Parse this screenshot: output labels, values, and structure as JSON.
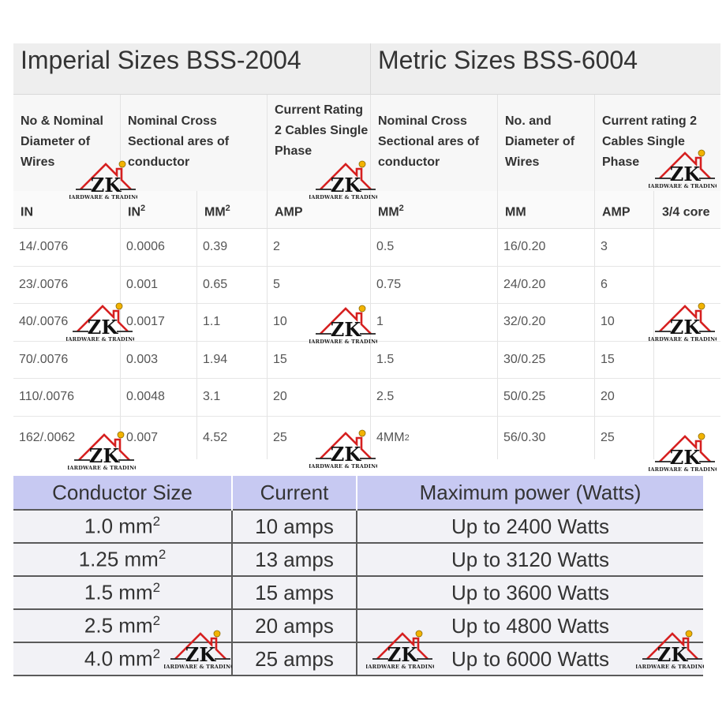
{
  "top": {
    "imperial_title": "Imperial Sizes BSS-2004",
    "metric_title": "Metric Sizes BSS-6004",
    "headers": [
      "No & Nominal Diameter of Wires",
      "Nominal Cross Sectional ares of conductor",
      "",
      "Current Rating 2 Cables Single Phase",
      "Nominal Cross Sectional ares of conductor",
      "No. and Diameter of Wires",
      "Current rating 2 Cables Single Phase",
      ""
    ],
    "units": [
      {
        "base": "IN",
        "sup": ""
      },
      {
        "base": "IN",
        "sup": "2"
      },
      {
        "base": "MM",
        "sup": "2"
      },
      {
        "base": "AMP",
        "sup": ""
      },
      {
        "base": "MM",
        "sup": "2"
      },
      {
        "base": "MM",
        "sup": ""
      },
      {
        "base": "AMP",
        "sup": ""
      },
      {
        "base": "3/4 core",
        "sup": ""
      }
    ],
    "rows": [
      [
        "14/.0076",
        "0.0006",
        "0.39",
        "2",
        "0.5",
        "16/0.20",
        "3",
        ""
      ],
      [
        "23/.0076",
        "0.001",
        "0.65",
        "5",
        "0.75",
        "24/0.20",
        "6",
        ""
      ],
      [
        "40/.0076",
        "0.0017",
        "1.1",
        "10",
        "1",
        "32/0.20",
        "10",
        ""
      ],
      [
        "70/.0076",
        "0.003",
        "1.94",
        "15",
        "1.5",
        "30/0.25",
        "15",
        ""
      ],
      [
        "110/.0076",
        "0.0048",
        "3.1",
        "20",
        "2.5",
        "50/0.25",
        "20",
        ""
      ],
      [
        "162/.0062",
        "0.007",
        "4.52",
        "25",
        "4MM",
        "56/0.30",
        "25",
        ""
      ]
    ],
    "row6_sup": "2"
  },
  "bottom": {
    "headers": [
      "Conductor Size",
      "Current",
      "Maximum power (Watts)"
    ],
    "rows": [
      {
        "size": "1.0 mm",
        "sup": "2",
        "current": "10 amps",
        "power": "Up to 2400 Watts"
      },
      {
        "size": "1.25 mm",
        "sup": "2",
        "current": "13 amps",
        "power": "Up to 3120 Watts"
      },
      {
        "size": "1.5 mm",
        "sup": "2",
        "current": "15 amps",
        "power": "Up to 3600 Watts"
      },
      {
        "size": "2.5 mm",
        "sup": "2",
        "current": "20 amps",
        "power": "Up to 4800 Watts"
      },
      {
        "size": "4.0 mm",
        "sup": "2",
        "current": "25 amps",
        "power": "Up to 6000 Watts"
      }
    ]
  },
  "watermark": {
    "monogram": "ZK",
    "caption": "HARDWARE & TRADING",
    "house_color": "#d62020",
    "dot_color": "#f2b300"
  }
}
